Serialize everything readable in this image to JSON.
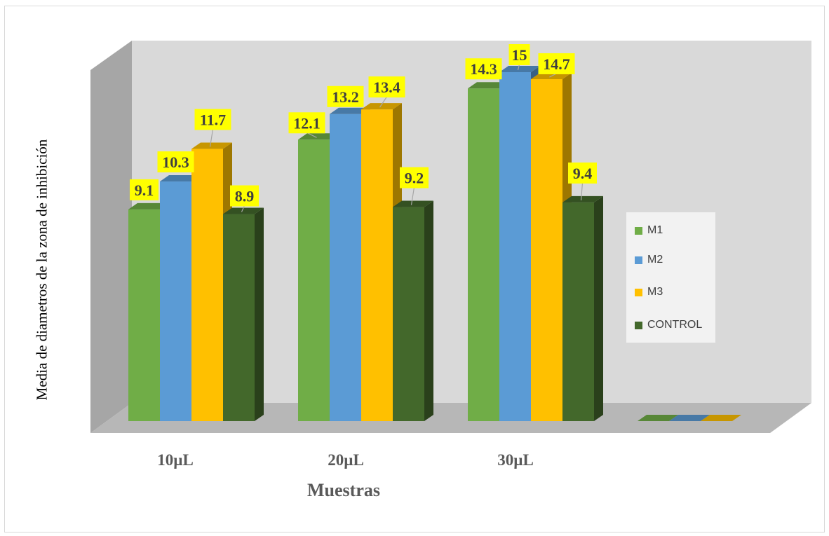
{
  "chart_data": {
    "type": "bar",
    "categories": [
      "10µL",
      "20µL",
      "30µL",
      ""
    ],
    "series": [
      {
        "name": "M1",
        "values": [
          9.1,
          12.1,
          14.3,
          0
        ]
      },
      {
        "name": "M2",
        "values": [
          10.3,
          13.2,
          15,
          0
        ]
      },
      {
        "name": "M3",
        "values": [
          11.7,
          13.4,
          14.7,
          0
        ]
      },
      {
        "name": "CONTROL",
        "values": [
          8.9,
          9.2,
          9.4,
          null
        ]
      }
    ],
    "data_labels": [
      [
        "9.1",
        "10.3",
        "11.7",
        "8.9"
      ],
      [
        "12.1",
        "13.2",
        "13.4",
        "9.2"
      ],
      [
        "14.3",
        "15",
        "14.7",
        "9.4"
      ]
    ],
    "title": "",
    "xlabel": "Muestras",
    "ylabel": "Media de diametros de la zona de inhibición",
    "ylim": [
      0,
      15
    ],
    "colors": {
      "M1": "#70ad47",
      "M2": "#5b9bd5",
      "M3": "#ffc000",
      "CONTROL": "#43682b"
    },
    "label_bg": "#ffff00",
    "legend_position": "right",
    "grid": false,
    "style": "3d-clustered-column"
  }
}
